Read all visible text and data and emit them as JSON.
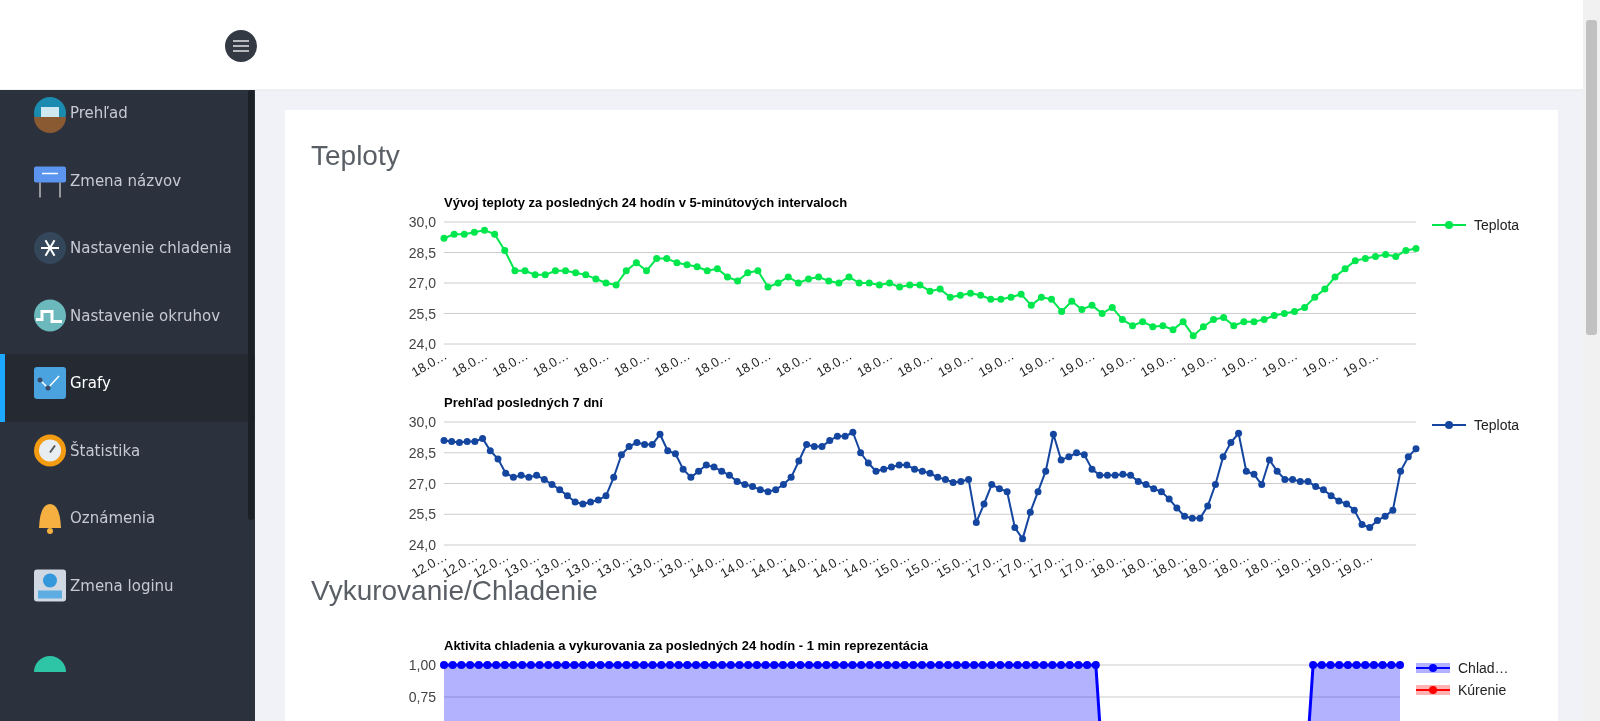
{
  "chart_data": [
    {
      "type": "other",
      "annotations": [
        "Prehľad",
        "Zmena názvov",
        "Nastavenie chladenia",
        "Nastavenie okruhov",
        "Grafy",
        "Štatistika",
        "Oznámenia",
        "Zmena loginu"
      ]
    },
    {
      "type": "other",
      "title": "Teploty"
    },
    {
      "type": "line",
      "title": "Vývoj teploty za posledných 24 hodín v 5-minútových intervaloch",
      "marker": "circle",
      "grid": "y",
      "legend": "top right",
      "categories": [
        "18.0…",
        null,
        null,
        null,
        "18.0…",
        null,
        null,
        null,
        "18.0…",
        null,
        null,
        null,
        "18.0…",
        null,
        null,
        null,
        "18.0…",
        null,
        null,
        null,
        "18.0…",
        null,
        null,
        null,
        "18.0…",
        null,
        null,
        null,
        "18.0…",
        null,
        null,
        null,
        "18.0…",
        null,
        null,
        null,
        "18.0…",
        null,
        null,
        null,
        "18.0…",
        null,
        null,
        null,
        "18.0…",
        null,
        null,
        null,
        "18.0…",
        null,
        null,
        null,
        "19.0…",
        null,
        null,
        null,
        "19.0…",
        null,
        null,
        null,
        "19.0…",
        null,
        null,
        null,
        "19.0…",
        null,
        null,
        null,
        "19.0…",
        null,
        null,
        null,
        "19.0…",
        null,
        null,
        null,
        "19.0…",
        null,
        null,
        null,
        "19.0…",
        null,
        null,
        null,
        "19.0…",
        null,
        null,
        null,
        "19.0…",
        null,
        null,
        null,
        "19.0…",
        null,
        null,
        null,
        null
      ],
      "ylim": [
        24,
        30
      ],
      "yticks": [
        {
          "value": 24,
          "label": "24,0"
        },
        {
          "value": 25.5,
          "label": "25,5"
        },
        {
          "value": 27,
          "label": "27,0"
        },
        {
          "value": 28.5,
          "label": "28,5"
        },
        {
          "value": 30,
          "label": "30,0"
        }
      ],
      "series": [
        {
          "name": "Teplota",
          "color": "#00e64d",
          "values": [
            29.2,
            29.4,
            29.4,
            29.5,
            29.6,
            29.4,
            28.6,
            27.6,
            27.6,
            27.4,
            27.4,
            27.6,
            27.6,
            27.5,
            27.4,
            27.2,
            27.0,
            26.9,
            27.6,
            28.0,
            27.6,
            28.2,
            28.2,
            28.0,
            27.9,
            27.8,
            27.6,
            27.7,
            27.3,
            27.1,
            27.5,
            27.6,
            26.8,
            27.0,
            27.3,
            27.0,
            27.2,
            27.3,
            27.1,
            27.0,
            27.3,
            27.0,
            27.0,
            26.9,
            27.0,
            26.8,
            26.9,
            26.9,
            26.6,
            26.7,
            26.3,
            26.4,
            26.5,
            26.4,
            26.2,
            26.2,
            26.3,
            26.45,
            25.9,
            26.3,
            26.2,
            25.6,
            26.1,
            25.7,
            25.9,
            25.5,
            25.8,
            25.2,
            24.9,
            25.1,
            24.85,
            24.9,
            24.7,
            25.1,
            24.4,
            24.85,
            25.2,
            25.3,
            24.9,
            25.1,
            25.1,
            25.2,
            25.4,
            25.5,
            25.6,
            25.8,
            26.3,
            26.7,
            27.3,
            27.7,
            28.1,
            28.2,
            28.3,
            28.4,
            28.3,
            28.6,
            28.7
          ]
        }
      ]
    },
    {
      "type": "line",
      "title": "Prehľad posledných 7 dní",
      "marker": "circle",
      "grid": "y",
      "legend": "top right",
      "categories": [
        "12.0…",
        null,
        null,
        null,
        "12.0…",
        null,
        null,
        null,
        "12.0…",
        null,
        null,
        null,
        "13.0…",
        null,
        null,
        null,
        "13.0…",
        null,
        null,
        null,
        "13.0…",
        null,
        null,
        null,
        "13.0…",
        null,
        null,
        null,
        "13.0…",
        null,
        null,
        null,
        "13.0…",
        null,
        null,
        null,
        "14.0…",
        null,
        null,
        null,
        "14.0…",
        null,
        null,
        null,
        "14.0…",
        null,
        null,
        null,
        "14.0…",
        null,
        null,
        null,
        "14.0…",
        null,
        null,
        null,
        "14.0…",
        null,
        null,
        null,
        "15.0…",
        null,
        null,
        null,
        "15.0…",
        null,
        null,
        null,
        "15.0…",
        null,
        null,
        null,
        "17.0…",
        null,
        null,
        null,
        "17.0…",
        null,
        null,
        null,
        "17.0…",
        null,
        null,
        null,
        "17.0…",
        null,
        null,
        null,
        "18.0…",
        null,
        null,
        null,
        "18.0…",
        null,
        null,
        null,
        "18.0…",
        null,
        null,
        null,
        "18.0…",
        null,
        null,
        null,
        "18.0…",
        null,
        null,
        null,
        "18.0…",
        null,
        null,
        null,
        "19.0…",
        null,
        null,
        null,
        "19.0…",
        null,
        null,
        null,
        "19.0…",
        null,
        null,
        null,
        null,
        null,
        null
      ],
      "ylim": [
        24,
        30
      ],
      "yticks": [
        {
          "value": 24,
          "label": "24,0"
        },
        {
          "value": 25.5,
          "label": "25,5"
        },
        {
          "value": 27,
          "label": "27,0"
        },
        {
          "value": 28.5,
          "label": "28,5"
        },
        {
          "value": 30,
          "label": "30,0"
        }
      ],
      "series": [
        {
          "name": "Teplota",
          "color": "#1446a0",
          "values": [
            29.1,
            29.05,
            29.0,
            29.05,
            29.05,
            29.2,
            28.6,
            28.2,
            27.5,
            27.3,
            27.4,
            27.3,
            27.4,
            27.2,
            26.95,
            26.7,
            26.4,
            26.1,
            26.0,
            26.1,
            26.2,
            26.4,
            27.3,
            28.4,
            28.8,
            29.0,
            28.9,
            28.9,
            29.4,
            28.6,
            28.45,
            27.7,
            27.3,
            27.6,
            27.9,
            27.8,
            27.6,
            27.4,
            27.1,
            26.95,
            26.85,
            26.7,
            26.6,
            26.7,
            26.95,
            27.3,
            28.1,
            28.9,
            28.8,
            28.8,
            29.1,
            29.3,
            29.3,
            29.5,
            28.5,
            28.0,
            27.6,
            27.7,
            27.8,
            27.9,
            27.9,
            27.7,
            27.6,
            27.5,
            27.3,
            27.2,
            27.05,
            27.1,
            27.2,
            25.1,
            26.0,
            26.95,
            26.75,
            26.6,
            24.85,
            24.3,
            25.6,
            26.6,
            27.6,
            29.4,
            28.15,
            28.3,
            28.5,
            28.4,
            27.7,
            27.4,
            27.4,
            27.4,
            27.45,
            27.4,
            27.1,
            26.95,
            26.75,
            26.6,
            26.25,
            25.8,
            25.4,
            25.3,
            25.3,
            25.9,
            26.95,
            28.3,
            29.0,
            29.45,
            27.6,
            27.45,
            26.95,
            28.15,
            27.6,
            27.2,
            27.2,
            27.1,
            27.1,
            26.85,
            26.7,
            26.4,
            26.15,
            26.0,
            25.7,
            25.0,
            24.85,
            25.2,
            25.4,
            25.7,
            27.6,
            28.3,
            28.7
          ]
        }
      ]
    },
    {
      "type": "other",
      "title": "Vykurovanie/Chladenie"
    },
    {
      "type": "area",
      "title": "Aktivita chladenia a vykurovania za posledných 24 hodín - 1 min reprezentácia",
      "marker": "circle",
      "grid": "y",
      "legend": "top right",
      "categories": [
        null,
        null,
        null,
        null,
        null,
        null,
        null,
        null,
        null,
        null,
        null,
        null,
        null,
        null,
        null,
        null,
        null,
        null,
        null,
        null,
        null,
        null,
        null,
        null,
        null,
        null,
        null,
        null,
        null,
        null,
        null,
        null,
        null,
        null,
        null,
        null,
        null,
        null,
        null,
        null,
        null,
        null,
        null,
        null,
        null,
        null,
        null,
        null,
        null,
        null,
        null,
        null,
        null,
        null,
        null,
        null,
        null,
        null,
        null,
        null,
        null,
        null,
        null,
        null,
        null,
        null,
        null,
        null,
        null,
        null,
        null,
        null,
        null,
        null,
        null,
        null,
        null,
        null,
        null,
        null,
        null,
        null,
        null,
        null,
        null,
        null,
        null,
        null,
        null,
        null,
        null,
        null,
        null,
        null,
        null,
        null,
        null,
        null,
        null,
        null,
        null,
        null,
        null,
        null,
        null,
        null,
        null,
        null,
        null,
        null,
        null
      ],
      "ylim": [
        0,
        1
      ],
      "yticks": [
        {
          "value": 0.75,
          "label": "0,75"
        },
        {
          "value": 1,
          "label": "1,00"
        }
      ],
      "series": [
        {
          "name": "Chlad…",
          "color": "#0000ff",
          "values": [
            1,
            1,
            1,
            1,
            1,
            1,
            1,
            1,
            1,
            1,
            1,
            1,
            1,
            1,
            1,
            1,
            1,
            1,
            1,
            1,
            1,
            1,
            1,
            1,
            1,
            1,
            1,
            1,
            1,
            1,
            1,
            1,
            1,
            1,
            1,
            1,
            1,
            1,
            1,
            1,
            1,
            1,
            1,
            1,
            1,
            1,
            1,
            1,
            1,
            1,
            1,
            1,
            1,
            1,
            1,
            1,
            1,
            1,
            1,
            1,
            1,
            1,
            1,
            1,
            1,
            1,
            1,
            1,
            1,
            1,
            1,
            1,
            1,
            1,
            1,
            1,
            0,
            0,
            0,
            0,
            0,
            0,
            0,
            0,
            0,
            0,
            0,
            0,
            0,
            0,
            0,
            0,
            0,
            0,
            0,
            0,
            0,
            0,
            0,
            0,
            1,
            1,
            1,
            1,
            1,
            1,
            1,
            1,
            1,
            1,
            1
          ]
        },
        {
          "name": "Kúrenie",
          "color": "#ff0000",
          "values": [
            null,
            null,
            null,
            null,
            null,
            null,
            null,
            null,
            null,
            null,
            null,
            null,
            null,
            null,
            null,
            null,
            null,
            null,
            null,
            null,
            null,
            null,
            null,
            null,
            null,
            null,
            null,
            null,
            null,
            null,
            null,
            null,
            null,
            null,
            null,
            null,
            null,
            null,
            null,
            null,
            null,
            null,
            null,
            null,
            null,
            null,
            null,
            null,
            null,
            null,
            null,
            null,
            null,
            null,
            null,
            null,
            null,
            null,
            null,
            null,
            null,
            null,
            null,
            null,
            null,
            null,
            null,
            null,
            null,
            null,
            null,
            null,
            null,
            null,
            null,
            null,
            null,
            null,
            null,
            null,
            null,
            null,
            null,
            null,
            null,
            null,
            null,
            null,
            null,
            null,
            null,
            null,
            null,
            null,
            null,
            null,
            null,
            null,
            null,
            null,
            null,
            null,
            null,
            null,
            null,
            null,
            null,
            null,
            null,
            null,
            null
          ]
        }
      ]
    }
  ]
}
